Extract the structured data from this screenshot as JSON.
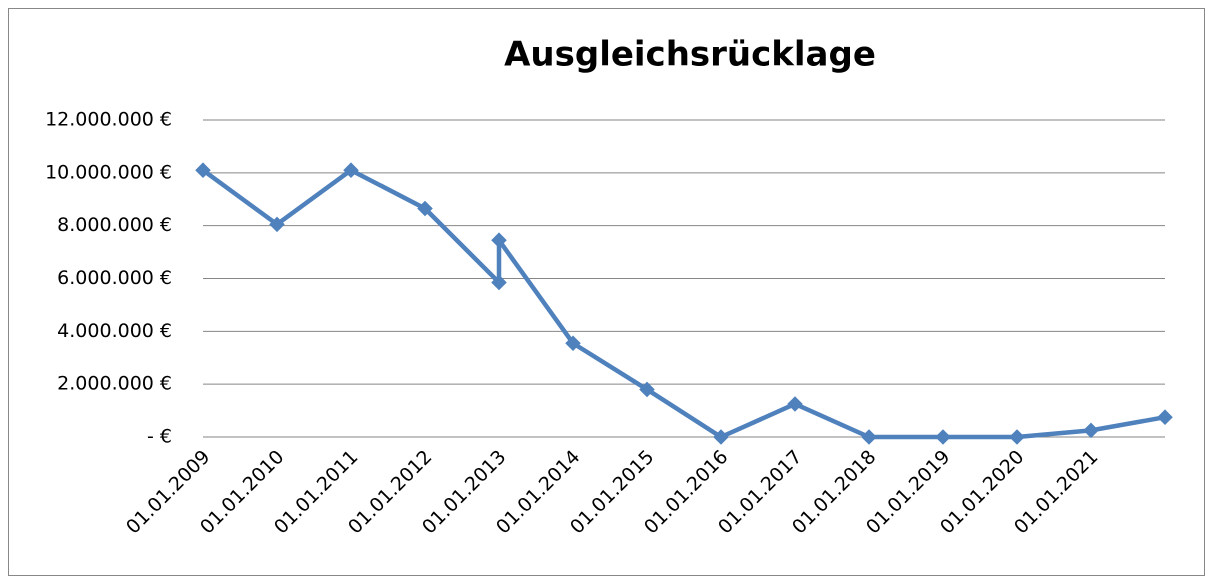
{
  "chart_data": {
    "type": "line",
    "title": "Ausgleichsrücklage",
    "x": [
      2009,
      2010,
      2011,
      2012,
      2013,
      2013,
      2014,
      2015,
      2016,
      2017,
      2018,
      2019,
      2020,
      2021,
      2022
    ],
    "series": [
      {
        "color": "#4f81bd",
        "values": [
          10100000,
          8050000,
          10100000,
          8650000,
          5850000,
          7450000,
          3550000,
          1800000,
          0,
          1250000,
          0,
          0,
          0,
          250000,
          750000
        ]
      }
    ],
    "xlim": [
      2009,
      2022
    ],
    "xticks": [
      {
        "value": 2009,
        "label": "01.01.2009"
      },
      {
        "value": 2010,
        "label": "01.01.2010"
      },
      {
        "value": 2011,
        "label": "01.01.2011"
      },
      {
        "value": 2012,
        "label": "01.01.2012"
      },
      {
        "value": 2013,
        "label": "01.01.2013"
      },
      {
        "value": 2014,
        "label": "01.01.2014"
      },
      {
        "value": 2015,
        "label": "01.01.2015"
      },
      {
        "value": 2016,
        "label": "01.01.2016"
      },
      {
        "value": 2017,
        "label": "01.01.2017"
      },
      {
        "value": 2018,
        "label": "01.01.2018"
      },
      {
        "value": 2019,
        "label": "01.01.2019"
      },
      {
        "value": 2020,
        "label": "01.01.2020"
      },
      {
        "value": 2021,
        "label": "01.01.2021"
      }
    ],
    "ylim": [
      0,
      12000000
    ],
    "yticks": [
      {
        "value": 0,
        "label": "- €"
      },
      {
        "value": 2000000,
        "label": "2.000.000 €"
      },
      {
        "value": 4000000,
        "label": "4.000.000 €"
      },
      {
        "value": 6000000,
        "label": "6.000.000 €"
      },
      {
        "value": 8000000,
        "label": "8.000.000 €"
      },
      {
        "value": 10000000,
        "label": "10.000.000 €"
      },
      {
        "value": 12000000,
        "label": "12.000.000 €"
      }
    ],
    "grid": true
  }
}
